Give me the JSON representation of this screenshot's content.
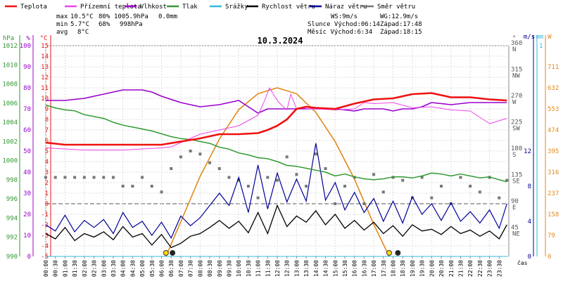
{
  "legend": [
    {
      "label": "Teplota",
      "color": "#ee1111"
    },
    {
      "label": "Přízemní teplota",
      "color": "#ee44ee"
    },
    {
      "label": "Vlhkost",
      "color": "#9900cc"
    },
    {
      "label": "Tlak",
      "color": "#339933"
    },
    {
      "label": "Srážky",
      "color": "#33bbdd"
    },
    {
      "label": "Rychlost větru",
      "color": "#000000"
    },
    {
      "label": "Náraz větru",
      "color": "#000099"
    },
    {
      "label": "Směr větru",
      "color": "#777777"
    }
  ],
  "stats": {
    "max": {
      "label": "max",
      "temp": "10.5°C",
      "hum": "80%",
      "press": "1005.9hPa",
      "rain": "0.0mm"
    },
    "min": {
      "label": "min",
      "temp": "5.7°C",
      "hum": "68%",
      "press": "998hPa"
    },
    "avg": {
      "label": "avg",
      "temp": "8°C"
    }
  },
  "info": {
    "ws": "WS:9m/s",
    "wg": "WG:12.9m/s",
    "sun_rise": "Slunce Východ:06:14",
    "sun_set": "Západ:17:48",
    "moon_rise": "Měsíc Východ:6:34",
    "moon_set": "Západ:18:15"
  },
  "colors": {
    "temp": "#ee1111",
    "ground": "#ee44ee",
    "hum": "#9900cc",
    "press": "#339933",
    "rain": "#33bbdd",
    "wind": "#000000",
    "gust": "#000099",
    "dir": "#777777",
    "sun": "#e08a1e"
  },
  "chart_data": {
    "type": "line",
    "title": "10.3.2024",
    "xlabel": "čas",
    "x_ticks": [
      "00:00",
      "00:30",
      "01:00",
      "01:30",
      "02:00",
      "02:30",
      "03:00",
      "03:30",
      "04:00",
      "04:30",
      "05:00",
      "05:30",
      "06:00",
      "06:30",
      "07:00",
      "07:30",
      "08:00",
      "08:30",
      "09:00",
      "09:30",
      "10:00",
      "10:30",
      "11:00",
      "11:30",
      "12:00",
      "12:30",
      "13:00",
      "13:30",
      "14:00",
      "14:30",
      "15:00",
      "15:30",
      "16:00",
      "16:30",
      "17:00",
      "17:30",
      "18:00",
      "18:30",
      "19:00",
      "19:30",
      "20:00",
      "20:30",
      "21:00",
      "21:30",
      "22:00",
      "22:30",
      "23:00",
      "23:30"
    ],
    "axes": {
      "hpa": {
        "label": "hPa",
        "range": [
          990,
          1012
        ],
        "ticks": [
          990,
          992,
          994,
          996,
          998,
          1000,
          1002,
          1004,
          1006,
          1008,
          1010,
          1012
        ]
      },
      "percent": {
        "label": "%",
        "range": [
          0,
          100
        ],
        "ticks": [
          0,
          10,
          20,
          30,
          40,
          50,
          60,
          70,
          80,
          90,
          100
        ]
      },
      "celsius": {
        "label": "°C",
        "range": [
          -5,
          15
        ],
        "ticks": [
          -5,
          -4,
          -3,
          -2,
          -1,
          0,
          1,
          2,
          3,
          4,
          5,
          6,
          7,
          8,
          9,
          10,
          11,
          12,
          13,
          14,
          15
        ]
      },
      "direction": {
        "label": "°",
        "range": [
          0,
          360
        ],
        "ticks": [
          {
            "v": 45,
            "t": "NE"
          },
          {
            "v": 90,
            "t": "E"
          },
          {
            "v": 135,
            "t": "SE"
          },
          {
            "v": 180,
            "t": "S"
          },
          {
            "v": 225,
            "t": "SW"
          },
          {
            "v": 270,
            "t": "W"
          },
          {
            "v": 315,
            "t": "NW"
          },
          {
            "v": 360,
            "t": "N"
          }
        ]
      },
      "wind": {
        "label": "m/s",
        "range": [
          0,
          12
        ],
        "ticks": [
          0,
          4,
          8,
          12
        ]
      },
      "rain": {
        "label": "mm",
        "range": [
          0,
          1
        ],
        "ticks": [
          0,
          1
        ]
      },
      "solar": {
        "label": "W",
        "range": [
          0,
          790
        ],
        "ticks": [
          0,
          79,
          158,
          237,
          316,
          395,
          474,
          553,
          632,
          711
        ]
      }
    },
    "series": [
      {
        "name": "Teplota",
        "axis": "celsius",
        "x": [
          0,
          1,
          2,
          3,
          4,
          5,
          6,
          7,
          8,
          9,
          10,
          11,
          11.5,
          12,
          12.5,
          13,
          13.5,
          14,
          15,
          16,
          16.5,
          17,
          18,
          19,
          20,
          21,
          22,
          23,
          23.9
        ],
        "values": [
          5.8,
          5.6,
          5.6,
          5.6,
          5.6,
          5.6,
          5.6,
          5.9,
          6.2,
          6.6,
          6.6,
          6.7,
          7.0,
          7.4,
          8.0,
          9.0,
          9.2,
          9.1,
          9.0,
          9.5,
          9.7,
          9.9,
          10.0,
          10.4,
          10.5,
          10.1,
          10.1,
          9.9,
          9.8
        ]
      },
      {
        "name": "Přízemní teplota",
        "axis": "celsius",
        "x": [
          0,
          1,
          2,
          3,
          4,
          5,
          6,
          6.5,
          7,
          7.5,
          8,
          9,
          10,
          10.5,
          11,
          11.3,
          11.6,
          12,
          12.2,
          12.5,
          12.7,
          13,
          13.3,
          13.6,
          14,
          15,
          16,
          16.5,
          17,
          18,
          19,
          20,
          21,
          22,
          22.5,
          23,
          23.9
        ],
        "values": [
          5.3,
          5.2,
          5.1,
          5.1,
          5.1,
          5.2,
          5.3,
          5.4,
          5.8,
          6.2,
          6.6,
          7.0,
          7.4,
          7.9,
          8.4,
          9.6,
          11.0,
          9.8,
          9.4,
          8.9,
          10.4,
          9.0,
          9.1,
          9.0,
          9.0,
          8.9,
          9.0,
          9.6,
          9.5,
          9.6,
          9.1,
          9.2,
          8.9,
          8.8,
          8.2,
          7.6,
          8.1
        ]
      },
      {
        "name": "Vlhkost",
        "axis": "percent",
        "x": [
          0,
          1,
          2,
          3,
          4,
          5,
          5.5,
          6,
          7,
          8,
          9,
          10,
          11,
          11.5,
          12,
          12.5,
          13,
          14,
          15,
          16,
          16.5,
          17,
          17.5,
          18,
          18.5,
          19,
          19.5,
          20,
          21,
          22,
          23,
          23.9
        ],
        "values": [
          74,
          74,
          75,
          77,
          79,
          79,
          78,
          76,
          73,
          71,
          72,
          74,
          68,
          70,
          70,
          70,
          70,
          70,
          70,
          69,
          70,
          70,
          70,
          69,
          70,
          70,
          71,
          73,
          72,
          73,
          73,
          73
        ]
      },
      {
        "name": "Tlak",
        "axis": "hpa",
        "x": [
          0,
          0.5,
          1,
          1.5,
          2,
          2.5,
          3,
          3.5,
          4,
          4.5,
          5,
          5.5,
          6,
          6.5,
          7,
          7.5,
          8,
          8.5,
          9,
          9.5,
          10,
          10.5,
          11,
          11.5,
          12,
          12.5,
          13,
          13.5,
          14,
          14.5,
          15,
          15.5,
          16,
          16.5,
          17,
          17.5,
          18,
          18.5,
          19,
          19.5,
          20,
          20.5,
          21,
          21.5,
          22,
          22.5,
          23,
          23.5,
          23.9
        ],
        "values": [
          1005.8,
          1005.5,
          1005.3,
          1005.2,
          1004.8,
          1004.6,
          1004.4,
          1004.0,
          1003.7,
          1003.5,
          1003.3,
          1003.1,
          1002.8,
          1002.5,
          1002.3,
          1002.2,
          1002.0,
          1001.8,
          1001.4,
          1001.2,
          1000.8,
          1000.6,
          1000.3,
          1000.2,
          999.9,
          999.5,
          999.4,
          999.2,
          999.0,
          998.8,
          998.4,
          998.6,
          998.3,
          998.1,
          998.0,
          998.1,
          998.3,
          998.3,
          998.2,
          998.4,
          998.7,
          998.6,
          998.4,
          998.6,
          998.4,
          998.2,
          998.3,
          998.0,
          997.8
        ]
      },
      {
        "name": "Srážky",
        "axis": "rain",
        "x": [
          0,
          23.9
        ],
        "values": [
          0,
          0
        ]
      },
      {
        "name": "Rychlost větru",
        "axis": "wind",
        "x": [
          0,
          0.5,
          1,
          1.5,
          2,
          2.5,
          3,
          3.5,
          4,
          4.5,
          5,
          5.5,
          6,
          6.5,
          7,
          7.5,
          8,
          8.5,
          9,
          9.5,
          10,
          10.5,
          11,
          11.5,
          12,
          12.5,
          13,
          13.5,
          14,
          14.5,
          15,
          15.5,
          16,
          16.5,
          17,
          17.5,
          18,
          18.5,
          19,
          19.5,
          20,
          20.5,
          21,
          21.5,
          22,
          22.5,
          23,
          23.5,
          23.9
        ],
        "values": [
          2.6,
          2.0,
          3.3,
          1.8,
          2.6,
          2.2,
          2.8,
          1.9,
          3.4,
          2.2,
          2.6,
          1.3,
          2.5,
          1.0,
          1.5,
          2.3,
          2.6,
          3.3,
          4.1,
          3.2,
          4.0,
          2.7,
          5.0,
          2.6,
          5.8,
          3.4,
          4.6,
          3.9,
          5.2,
          3.6,
          4.8,
          3.2,
          4.1,
          3.0,
          3.9,
          2.6,
          3.5,
          2.3,
          3.6,
          2.9,
          3.1,
          2.5,
          3.4,
          2.6,
          3.0,
          2.3,
          2.9,
          2.0,
          3.6
        ]
      },
      {
        "name": "Náraz větru",
        "axis": "wind",
        "x": [
          0,
          0.5,
          1,
          1.5,
          2,
          2.5,
          3,
          3.5,
          4,
          4.5,
          5,
          5.5,
          6,
          6.5,
          7,
          7.5,
          8,
          8.5,
          9,
          9.5,
          10,
          10.5,
          11,
          11.5,
          12,
          12.5,
          13,
          13.5,
          14,
          14.5,
          15,
          15.5,
          16,
          16.5,
          17,
          17.5,
          18,
          18.5,
          19,
          19.5,
          20,
          20.5,
          21,
          21.5,
          22,
          22.5,
          23,
          23.5,
          23.9
        ],
        "values": [
          3.6,
          2.9,
          4.7,
          2.8,
          4.1,
          3.3,
          4.2,
          2.6,
          5.0,
          3.3,
          4.0,
          2.4,
          3.9,
          2.1,
          4.6,
          3.5,
          4.4,
          5.8,
          7.2,
          5.8,
          9.0,
          5.0,
          10.4,
          5.4,
          9.5,
          6.2,
          8.8,
          6.3,
          12.9,
          6.4,
          8.4,
          5.3,
          7.3,
          5.0,
          6.6,
          4.0,
          6.3,
          3.8,
          6.8,
          4.8,
          6.0,
          4.1,
          6.1,
          4.0,
          5.1,
          3.8,
          5.3,
          3.2,
          6.0
        ]
      },
      {
        "name": "Směr větru",
        "axis": "direction",
        "x": [
          0,
          0.5,
          1,
          1.5,
          2,
          2.5,
          3,
          3.5,
          4,
          4.5,
          5,
          5.5,
          6,
          6.5,
          7,
          7.5,
          8,
          8.5,
          9,
          9.5,
          10,
          10.5,
          11,
          11.5,
          12,
          12.5,
          13,
          13.5,
          14,
          14.5,
          15,
          15.5,
          16,
          16.5,
          17,
          17.5,
          18,
          18.5,
          19,
          19.5,
          20,
          20.5,
          21,
          21.5,
          22,
          22.5,
          23,
          23.5,
          23.9
        ],
        "values": [
          135,
          135,
          135,
          135,
          135,
          135,
          135,
          135,
          120,
          120,
          135,
          120,
          110,
          150,
          170,
          180,
          175,
          160,
          150,
          135,
          130,
          120,
          100,
          135,
          130,
          170,
          140,
          120,
          175,
          150,
          90,
          120,
          135,
          90,
          140,
          110,
          135,
          130,
          100,
          135,
          100,
          120,
          90,
          135,
          120,
          110,
          135,
          100,
          130
        ]
      },
      {
        "name": "Sluneční záření",
        "axis": "solar",
        "x": [
          6.23,
          7,
          8,
          9,
          10,
          11,
          12,
          13,
          14,
          15,
          16,
          17,
          17.8
        ],
        "values": [
          0,
          130,
          300,
          440,
          550,
          610,
          632,
          610,
          540,
          430,
          290,
          120,
          0
        ]
      }
    ]
  }
}
